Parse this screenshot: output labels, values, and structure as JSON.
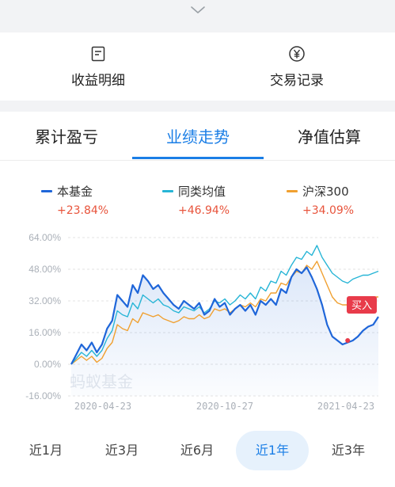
{
  "quick_links": [
    {
      "label": "收益明细",
      "icon": "document-icon"
    },
    {
      "label": "交易记录",
      "icon": "yen-circle-icon"
    }
  ],
  "tabs": [
    {
      "label": "累计盈亏",
      "active": false
    },
    {
      "label": "业绩走势",
      "active": true
    },
    {
      "label": "净值估算",
      "active": false
    }
  ],
  "legend": [
    {
      "name": "本基金",
      "value": "+23.84%",
      "color": "#1f66d9"
    },
    {
      "name": "同类均值",
      "value": "+46.94%",
      "color": "#27b5d6"
    },
    {
      "name": "沪深300",
      "value": "+34.09%",
      "color": "#f0a030"
    }
  ],
  "watermark": "蚂蚁基金",
  "buy_marker": {
    "label": "买入",
    "date": "2021-03-05",
    "value": 12.0
  },
  "periods": [
    {
      "label": "近1月",
      "active": false
    },
    {
      "label": "近3月",
      "active": false
    },
    {
      "label": "近6月",
      "active": false
    },
    {
      "label": "近1年",
      "active": true
    },
    {
      "label": "近3年",
      "active": false
    }
  ],
  "chart_data": {
    "type": "line",
    "ylim": [
      -16,
      64
    ],
    "yticks": [
      "64.00%",
      "48.00%",
      "32.00%",
      "16.00%",
      "0.00%",
      "-16.00%"
    ],
    "yticks_values": [
      64,
      48,
      32,
      16,
      0,
      -16
    ],
    "xticks": [
      "2020-04-23",
      "2020-10-27",
      "2021-04-23"
    ],
    "grid": true,
    "series": [
      {
        "name": "本基金",
        "color": "#1f66d9",
        "values": [
          0,
          5,
          10,
          7,
          11,
          6,
          10,
          18,
          22,
          35,
          32,
          29,
          40,
          36,
          45,
          42,
          38,
          40,
          36,
          33,
          30,
          28,
          32,
          30,
          28,
          31,
          25,
          27,
          33,
          29,
          31,
          25,
          28,
          30,
          27,
          30,
          25,
          32,
          30,
          33,
          30,
          38,
          36,
          44,
          48,
          46,
          49,
          44,
          38,
          30,
          20,
          14,
          12,
          10,
          11,
          12,
          14,
          17,
          19,
          20,
          24
        ]
      },
      {
        "name": "同类均值",
        "color": "#27b5d6",
        "values": [
          0,
          3,
          6,
          4,
          7,
          4,
          7,
          13,
          17,
          27,
          25,
          24,
          31,
          28,
          35,
          33,
          31,
          33,
          30,
          29,
          27,
          26,
          29,
          28,
          27,
          29,
          26,
          28,
          32,
          31,
          33,
          30,
          32,
          35,
          33,
          36,
          33,
          39,
          37,
          42,
          41,
          47,
          45,
          50,
          54,
          53,
          57,
          55,
          60,
          54,
          50,
          46,
          44,
          42,
          41,
          43,
          44,
          45,
          45,
          46,
          47
        ]
      },
      {
        "name": "沪深300",
        "color": "#f0a030",
        "values": [
          0,
          2,
          4,
          2,
          4,
          1,
          3,
          8,
          11,
          20,
          18,
          17,
          23,
          21,
          26,
          25,
          24,
          25,
          23,
          22,
          21,
          22,
          24,
          23,
          23,
          25,
          23,
          24,
          28,
          27,
          28,
          26,
          28,
          30,
          29,
          31,
          29,
          33,
          32,
          36,
          36,
          41,
          40,
          44,
          47,
          46,
          50,
          48,
          52,
          46,
          40,
          34,
          31,
          30,
          30,
          31,
          32,
          33,
          33,
          34,
          34
        ]
      }
    ]
  }
}
